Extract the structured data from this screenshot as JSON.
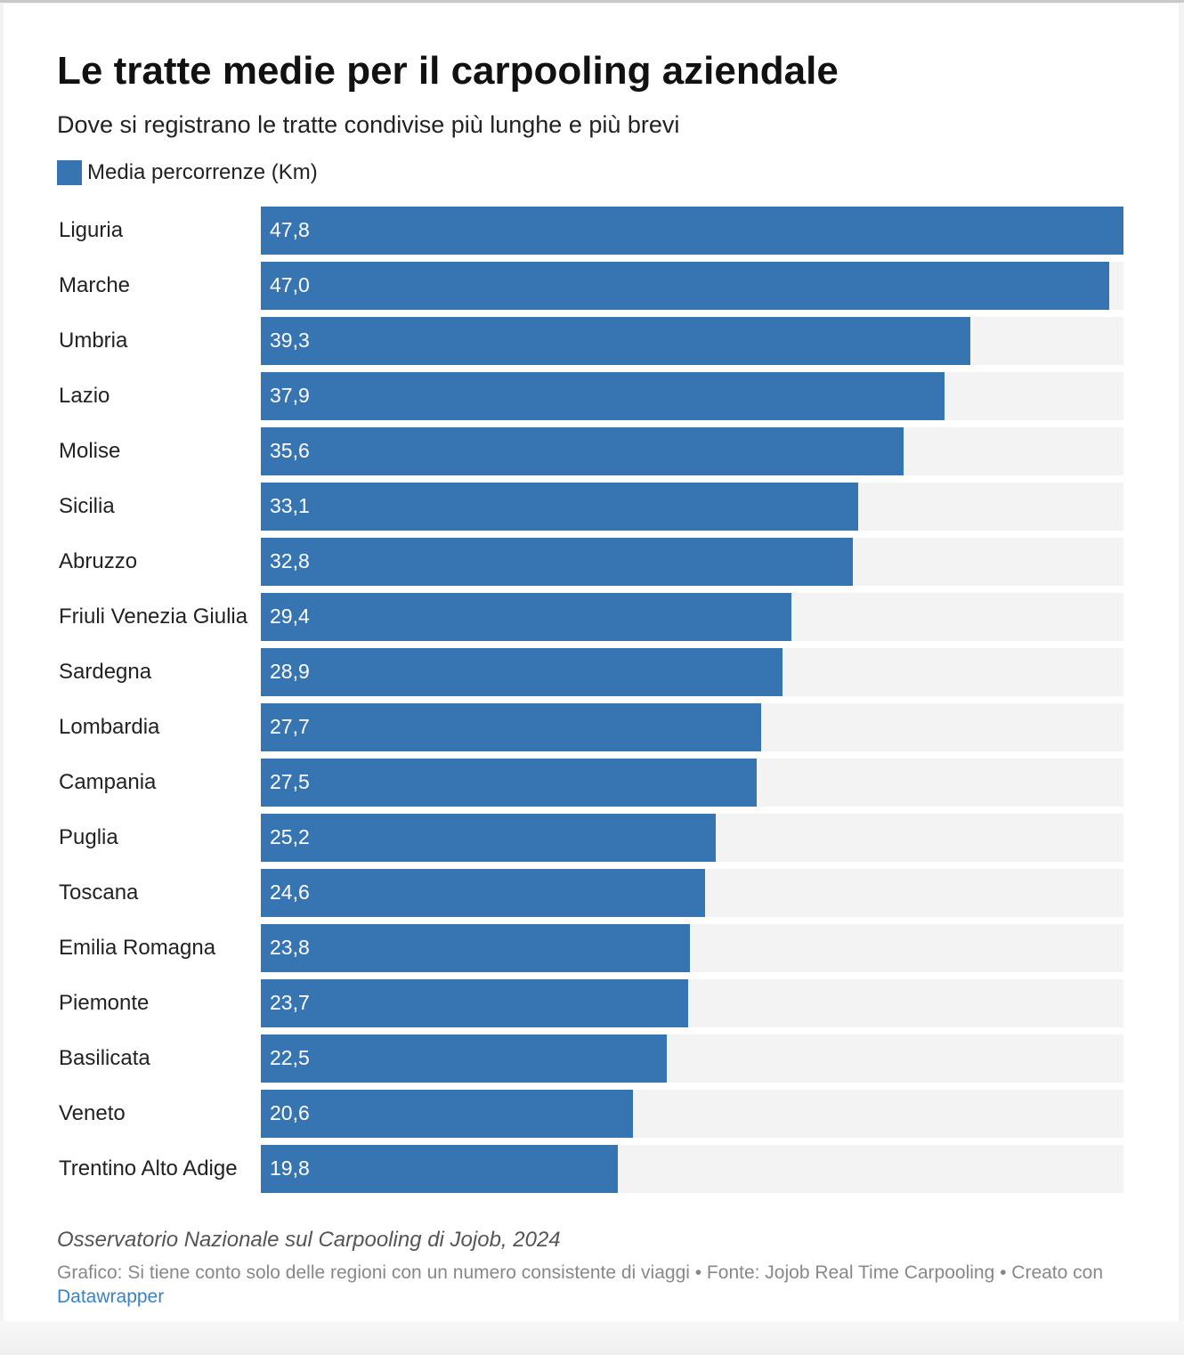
{
  "chart_data": {
    "type": "bar",
    "orientation": "horizontal",
    "title": "Le tratte medie per il carpooling aziendale",
    "subtitle": "Dove si registrano le tratte condivise più lunghe e più brevi",
    "legend": {
      "label": "Media percorrenze (Km)",
      "placement": "top-left"
    },
    "bar_color": "#3775b2",
    "track_color": "#f3f3f3",
    "xlim": [
      0,
      47.8
    ],
    "grid": false,
    "categories": [
      "Liguria",
      "Marche",
      "Umbria",
      "Lazio",
      "Molise",
      "Sicilia",
      "Abruzzo",
      "Friuli Venezia Giulia",
      "Sardegna",
      "Lombardia",
      "Campania",
      "Puglia",
      "Toscana",
      "Emilia Romagna",
      "Piemonte",
      "Basilicata",
      "Veneto",
      "Trentino Alto Adige"
    ],
    "values": [
      47.8,
      47.0,
      39.3,
      37.9,
      35.6,
      33.1,
      32.8,
      29.4,
      28.9,
      27.7,
      27.5,
      25.2,
      24.6,
      23.8,
      23.7,
      22.5,
      20.6,
      19.8
    ],
    "value_labels": [
      "47,8",
      "47,0",
      "39,3",
      "37,9",
      "35,6",
      "33,1",
      "32,8",
      "29,4",
      "28,9",
      "27,7",
      "27,5",
      "25,2",
      "24,6",
      "23,8",
      "23,7",
      "22,5",
      "20,6",
      "19,8"
    ]
  },
  "notes": "Osservatorio Nazionale sul Carpooling di Jojob, 2024",
  "footer": {
    "text": "Grafico: Si tiene conto solo delle regioni con un numero consistente di viaggi • Fonte: Jojob Real Time Carpooling  • Creato con ",
    "link_label": "Datawrapper"
  }
}
